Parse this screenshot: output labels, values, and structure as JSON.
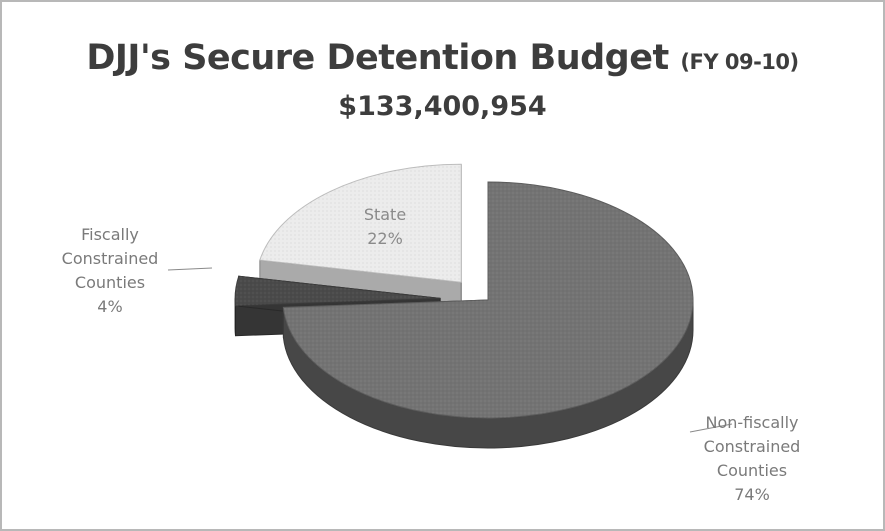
{
  "chart_data": {
    "type": "pie",
    "title": "DJJ's Secure Detention Budget",
    "title_suffix": "(FY 09-10)",
    "subtitle": "$133,400,954",
    "slices": [
      {
        "name": "Non-fiscally Constrained Counties",
        "value": 74,
        "label": "74%",
        "label_lines": [
          "Non-fiscally",
          "Constrained",
          "Counties",
          "74%"
        ],
        "color": "#737373"
      },
      {
        "name": "Fiscally Constrained Counties",
        "value": 4,
        "label": "4%",
        "label_lines": [
          "Fiscally",
          "Constrained",
          "Counties",
          "4%"
        ],
        "color": "#4a4a4a"
      },
      {
        "name": "State",
        "value": 22,
        "label": "22%",
        "label_lines": [
          "State",
          "22%"
        ],
        "color": "#ececec"
      }
    ],
    "legend": "none",
    "style": "3d-exploded"
  }
}
